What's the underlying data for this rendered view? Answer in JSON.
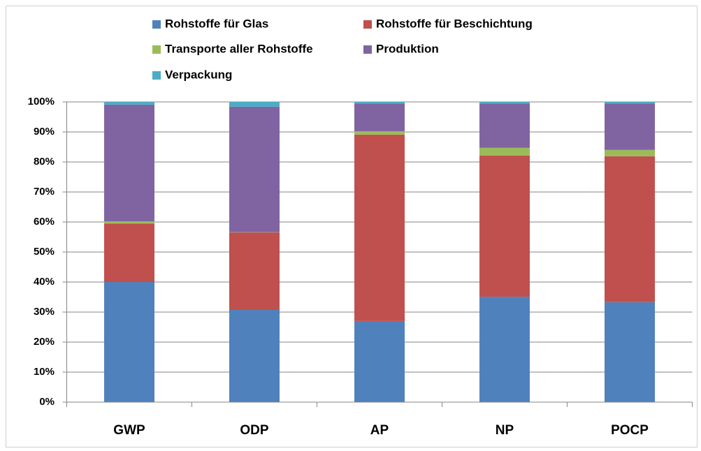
{
  "chart_data": {
    "type": "stacked_bar",
    "categories": [
      "GWP",
      "ODP",
      "AP",
      "NP",
      "POCP"
    ],
    "series": [
      {
        "name": "Rohstoffe für Glas",
        "color": "#4f81bd",
        "values": [
          40,
          30.7,
          27,
          35.1,
          33.3
        ]
      },
      {
        "name": "Rohstoffe für Beschichtung",
        "color": "#c0504d",
        "values": [
          19.5,
          25.8,
          62.1,
          47,
          48.6
        ]
      },
      {
        "name": "Transporte aller Rohstoffe",
        "color": "#9bbb59",
        "values": [
          0.7,
          0.1,
          1.1,
          2.6,
          2.1
        ]
      },
      {
        "name": "Produktion",
        "color": "#8064a2",
        "values": [
          38.9,
          41.8,
          9.3,
          14.8,
          15.5
        ]
      },
      {
        "name": "Verpackung",
        "color": "#4bacc6",
        "values": [
          0.9,
          1.6,
          0.5,
          0.5,
          0.5
        ]
      }
    ],
    "ylim": [
      0,
      100
    ],
    "yticks": [
      {
        "value": 0,
        "label": "0%"
      },
      {
        "value": 10,
        "label": "10%"
      },
      {
        "value": 20,
        "label": "20%"
      },
      {
        "value": 30,
        "label": "30%"
      },
      {
        "value": 40,
        "label": "40%"
      },
      {
        "value": 50,
        "label": "50%"
      },
      {
        "value": 60,
        "label": "60%"
      },
      {
        "value": 70,
        "label": "70%"
      },
      {
        "value": 80,
        "label": "80%"
      },
      {
        "value": 90,
        "label": "90%"
      },
      {
        "value": 100,
        "label": "100%"
      }
    ],
    "grid": true,
    "legend": "top"
  }
}
